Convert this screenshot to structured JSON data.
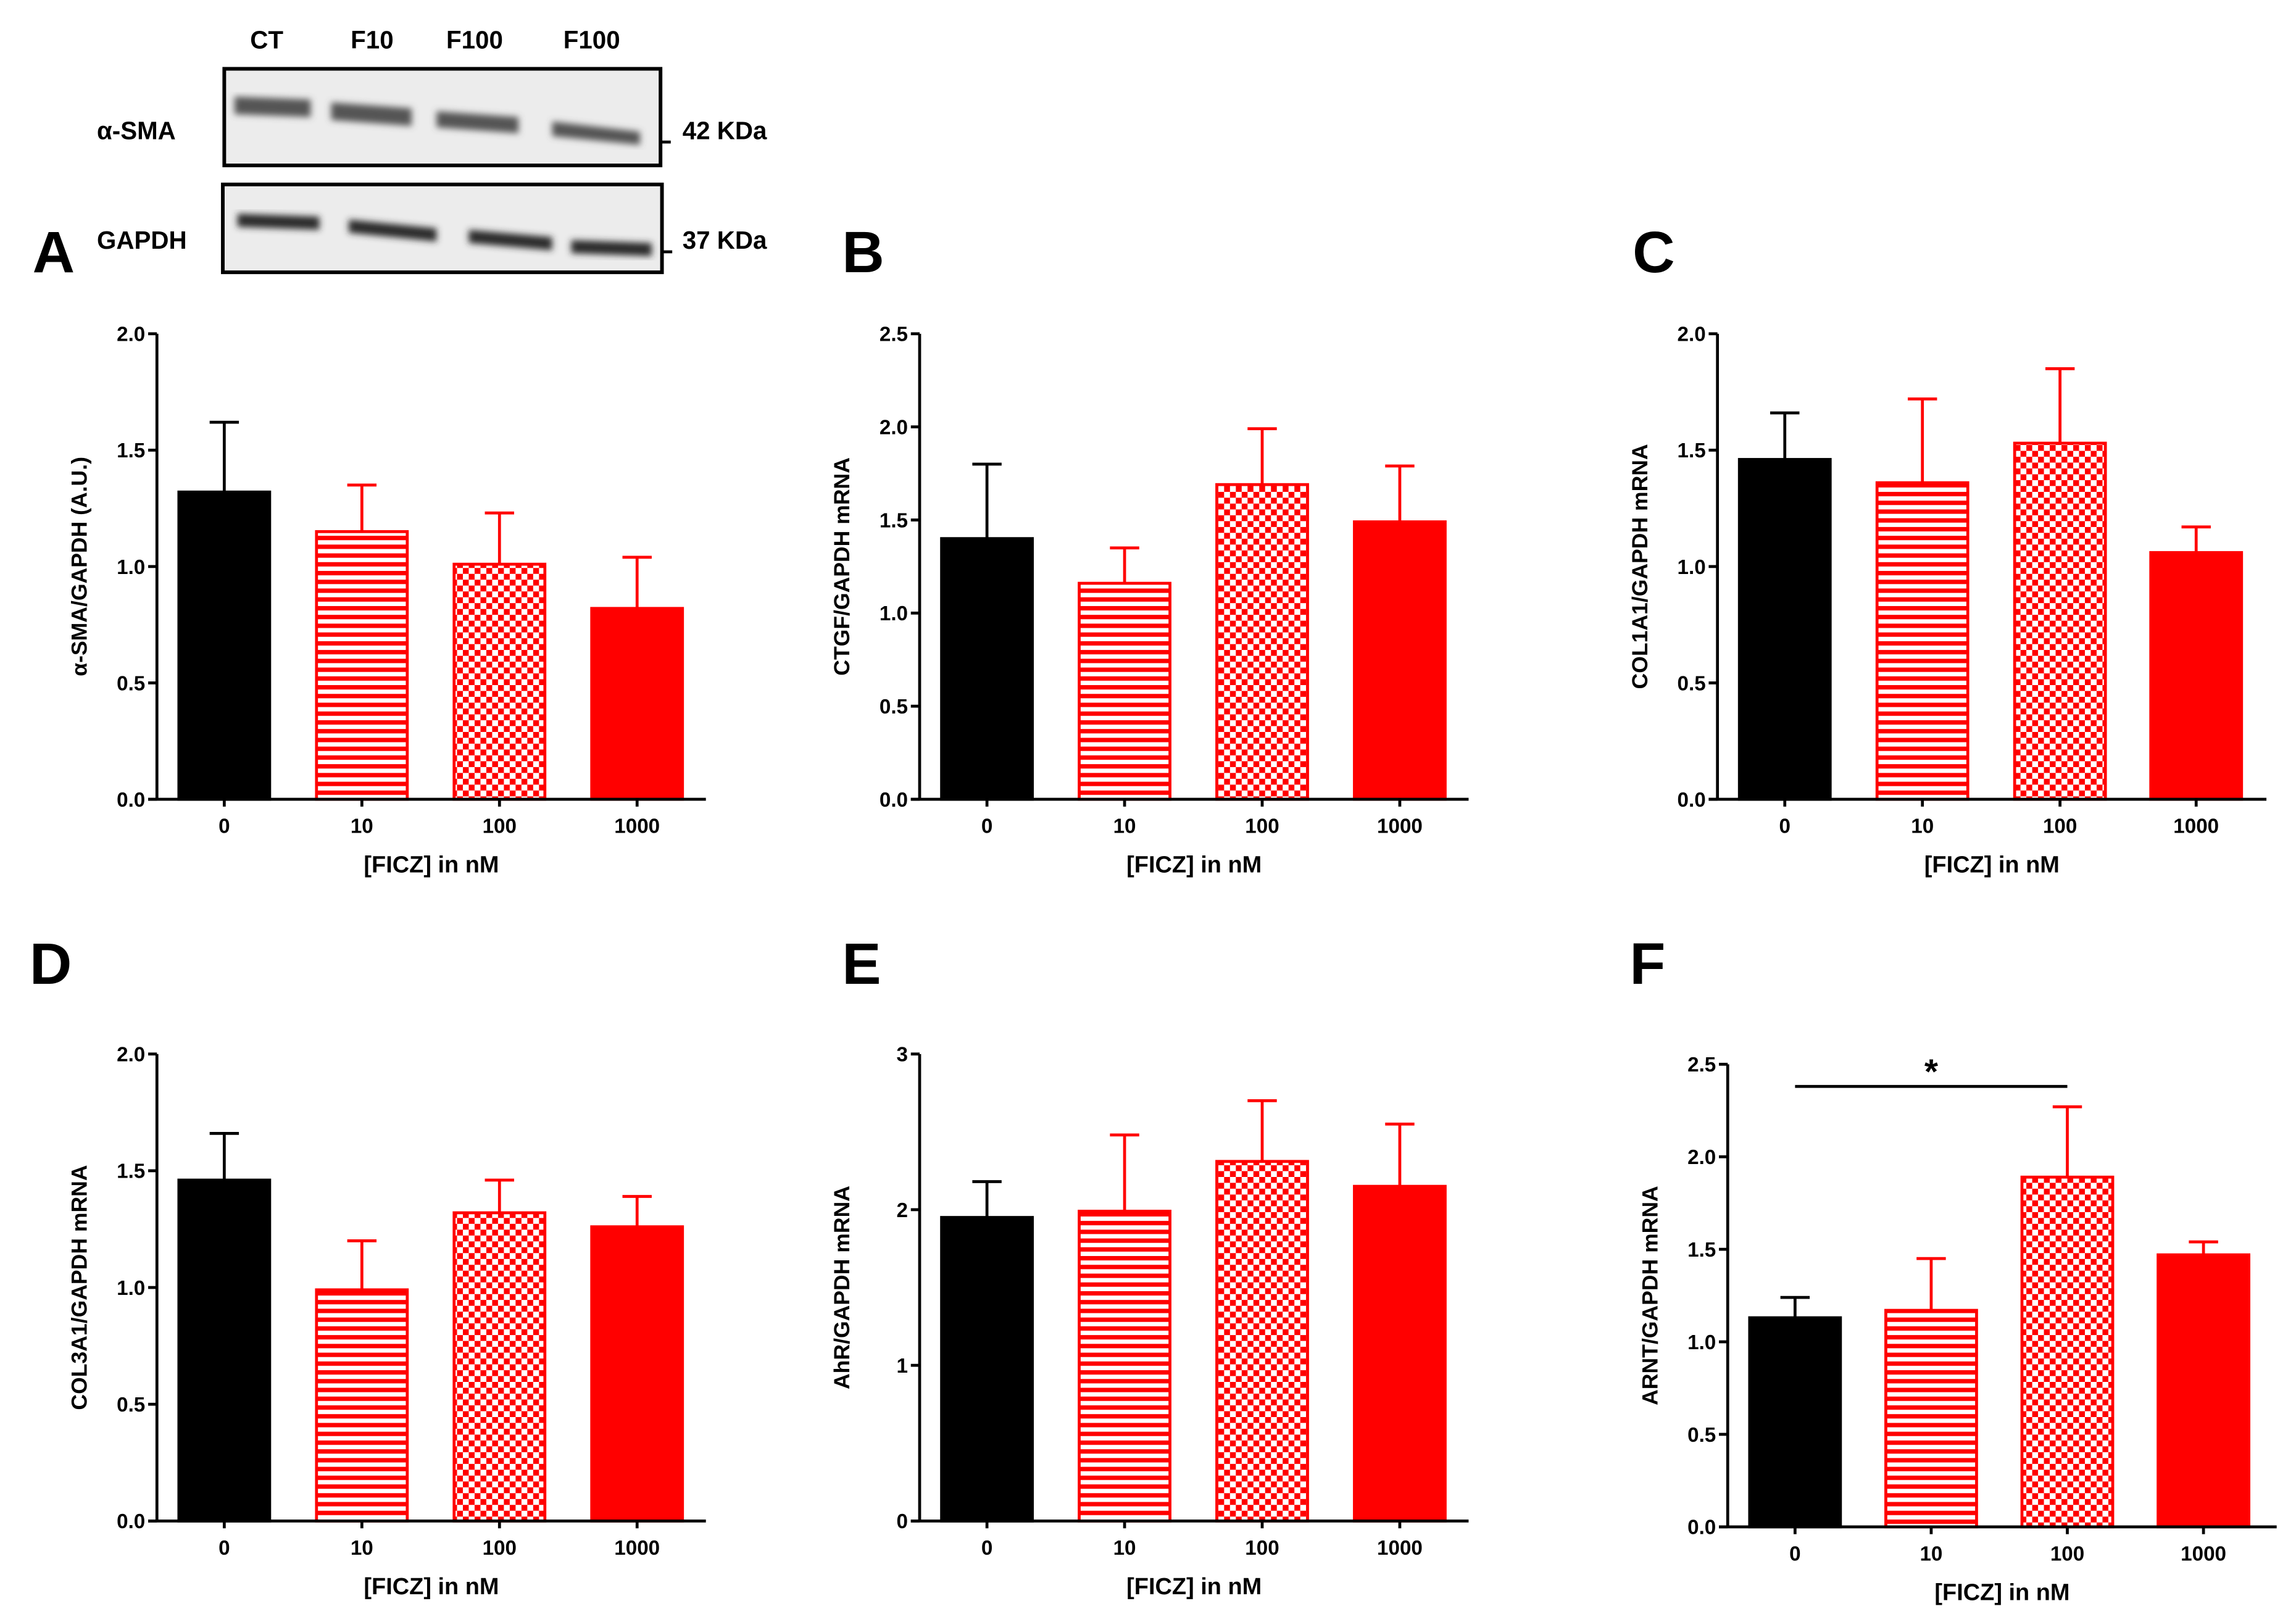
{
  "blot": {
    "lanes": [
      "CT",
      "F10",
      "F100",
      "F100"
    ],
    "rows": [
      {
        "protein": "α-SMA",
        "size": "42 KDa"
      },
      {
        "protein": "GAPDH",
        "size": "37 KDa"
      }
    ]
  },
  "colors": {
    "control": "#000000",
    "treated": "#ff0000"
  },
  "chart_data": [
    {
      "panel": "A",
      "type": "bar",
      "categories": [
        "0",
        "10",
        "100",
        "1000"
      ],
      "values": [
        1.32,
        1.15,
        1.01,
        0.82
      ],
      "errors": [
        0.3,
        0.2,
        0.22,
        0.22
      ],
      "patterns": [
        "solid-black",
        "hlines-red",
        "checker-red",
        "solid-red"
      ],
      "xlabel": "[FICZ] in nM",
      "ylabel": "α-SMA/GAPDH (A.U.)",
      "ylim": [
        0,
        2.0
      ],
      "yticks": [
        "0.0",
        "0.5",
        "1.0",
        "1.5",
        "2.0"
      ],
      "ytick_values": [
        0,
        0.5,
        1,
        1.5,
        2
      ]
    },
    {
      "panel": "B",
      "type": "bar",
      "categories": [
        "0",
        "10",
        "100",
        "1000"
      ],
      "values": [
        1.4,
        1.16,
        1.69,
        1.49
      ],
      "errors": [
        0.4,
        0.19,
        0.3,
        0.3
      ],
      "patterns": [
        "solid-black",
        "hlines-red",
        "checker-red",
        "solid-red"
      ],
      "xlabel": "[FICZ] in nM",
      "ylabel": "CTGF/GAPDH mRNA",
      "ylim": [
        0,
        2.5
      ],
      "yticks": [
        "0.0",
        "0.5",
        "1.0",
        "1.5",
        "2.0",
        "2.5"
      ],
      "ytick_values": [
        0,
        0.5,
        1,
        1.5,
        2,
        2.5
      ]
    },
    {
      "panel": "C",
      "type": "bar",
      "categories": [
        "0",
        "10",
        "100",
        "1000"
      ],
      "values": [
        1.46,
        1.36,
        1.53,
        1.06
      ],
      "errors": [
        0.2,
        0.36,
        0.32,
        0.11
      ],
      "patterns": [
        "solid-black",
        "hlines-red",
        "checker-red",
        "solid-red"
      ],
      "xlabel": "[FICZ] in nM",
      "ylabel": "COL1A1/GAPDH mRNA",
      "ylim": [
        0,
        2.0
      ],
      "yticks": [
        "0.0",
        "0.5",
        "1.0",
        "1.5",
        "2.0"
      ],
      "ytick_values": [
        0,
        0.5,
        1,
        1.5,
        2
      ]
    },
    {
      "panel": "D",
      "type": "bar",
      "categories": [
        "0",
        "10",
        "100",
        "1000"
      ],
      "values": [
        1.46,
        0.99,
        1.32,
        1.26
      ],
      "errors": [
        0.2,
        0.21,
        0.14,
        0.13
      ],
      "patterns": [
        "solid-black",
        "hlines-red",
        "checker-red",
        "solid-red"
      ],
      "xlabel": "[FICZ] in nM",
      "ylabel": "COL3A1/GAPDH mRNA",
      "ylim": [
        0,
        2.0
      ],
      "yticks": [
        "0.0",
        "0.5",
        "1.0",
        "1.5",
        "2.0"
      ],
      "ytick_values": [
        0,
        0.5,
        1,
        1.5,
        2
      ]
    },
    {
      "panel": "E",
      "type": "bar",
      "categories": [
        "0",
        "10",
        "100",
        "1000"
      ],
      "values": [
        1.95,
        1.99,
        2.31,
        2.15
      ],
      "errors": [
        0.23,
        0.49,
        0.39,
        0.4
      ],
      "patterns": [
        "solid-black",
        "hlines-red",
        "checker-red",
        "solid-red"
      ],
      "xlabel": "[FICZ] in nM",
      "ylabel": "AhR/GAPDH mRNA",
      "ylim": [
        0,
        3
      ],
      "yticks": [
        "0",
        "1",
        "2",
        "3"
      ],
      "ytick_values": [
        0,
        1,
        2,
        3
      ]
    },
    {
      "panel": "F",
      "type": "bar",
      "categories": [
        "0",
        "10",
        "100",
        "1000"
      ],
      "values": [
        1.13,
        1.17,
        1.89,
        1.47
      ],
      "errors": [
        0.11,
        0.28,
        0.38,
        0.07
      ],
      "patterns": [
        "solid-black",
        "hlines-red",
        "checker-red",
        "solid-red"
      ],
      "xlabel": "[FICZ] in nM",
      "ylabel": "ARNT/GAPDH mRNA",
      "ylim": [
        0,
        2.5
      ],
      "yticks": [
        "0.0",
        "0.5",
        "1.0",
        "1.5",
        "2.0",
        "2.5"
      ],
      "ytick_values": [
        0,
        0.5,
        1,
        1.5,
        2,
        2.5
      ],
      "significance": {
        "from": "0",
        "to": "100",
        "level": 2.38,
        "label": "*"
      }
    }
  ]
}
